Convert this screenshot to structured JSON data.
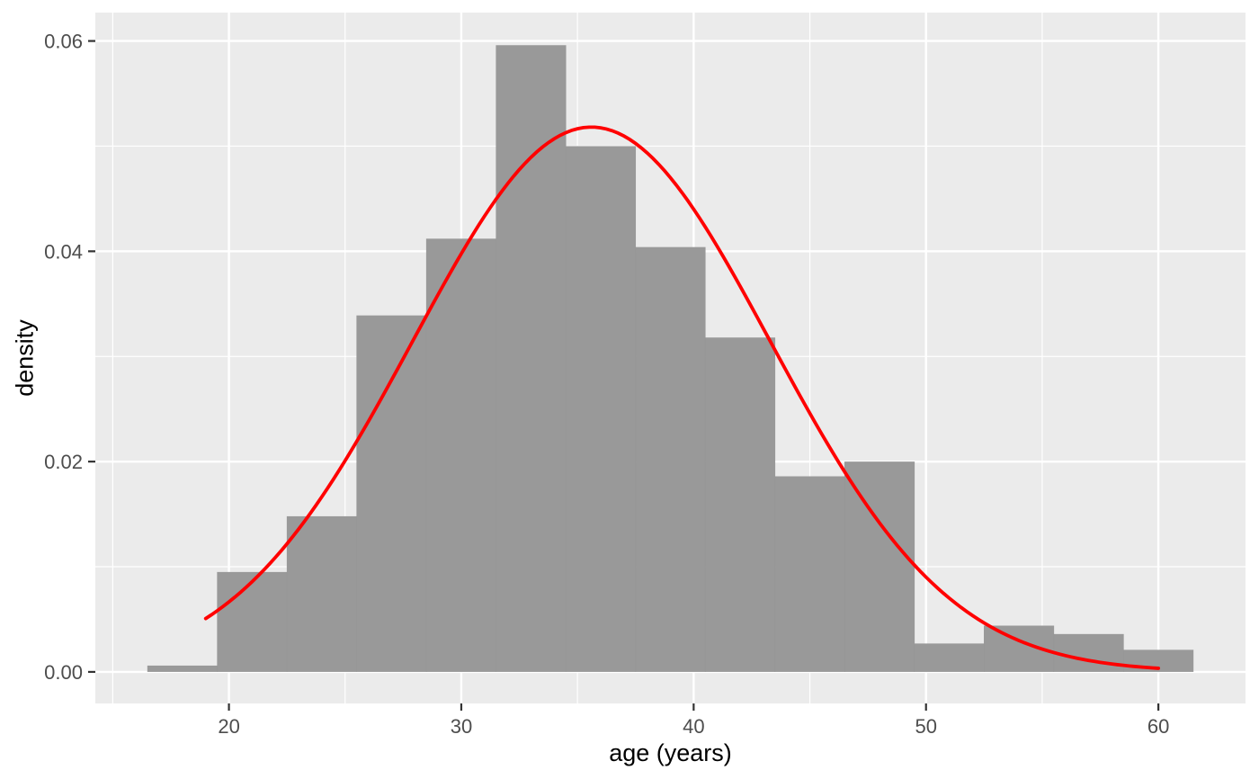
{
  "chart_data": {
    "type": "bar",
    "subtype": "histogram-with-density-curve",
    "title": "",
    "xlabel": "age (years)",
    "ylabel": "density",
    "x_axis": {
      "lim": [
        14.25,
        63.75
      ],
      "major_ticks": [
        20,
        30,
        40,
        50,
        60
      ],
      "major_tick_labels": [
        "20",
        "30",
        "40",
        "50",
        "60"
      ],
      "minor_gridlines": [
        15,
        25,
        35,
        45,
        55
      ]
    },
    "y_axis": {
      "lim": [
        -0.003,
        0.0627
      ],
      "major_ticks": [
        0,
        0.02,
        0.04,
        0.06
      ],
      "major_tick_labels": [
        "0.00",
        "0.02",
        "0.04",
        "0.06"
      ],
      "minor_gridlines": [
        0.01,
        0.03,
        0.05
      ]
    },
    "grid": true,
    "legend": "none",
    "bin_width_years": 3,
    "bins": [
      {
        "x0": 16.5,
        "x1": 19.5,
        "density": 0.0006
      },
      {
        "x0": 19.5,
        "x1": 22.5,
        "density": 0.0095
      },
      {
        "x0": 22.5,
        "x1": 25.5,
        "density": 0.0148
      },
      {
        "x0": 25.5,
        "x1": 28.5,
        "density": 0.0339
      },
      {
        "x0": 28.5,
        "x1": 31.5,
        "density": 0.0412
      },
      {
        "x0": 31.5,
        "x1": 34.5,
        "density": 0.0596
      },
      {
        "x0": 34.5,
        "x1": 37.5,
        "density": 0.05
      },
      {
        "x0": 37.5,
        "x1": 40.5,
        "density": 0.0404
      },
      {
        "x0": 40.5,
        "x1": 43.5,
        "density": 0.0318
      },
      {
        "x0": 43.5,
        "x1": 46.5,
        "density": 0.0186
      },
      {
        "x0": 46.5,
        "x1": 49.5,
        "density": 0.02
      },
      {
        "x0": 49.5,
        "x1": 52.5,
        "density": 0.0027
      },
      {
        "x0": 52.5,
        "x1": 55.5,
        "density": 0.0044
      },
      {
        "x0": 55.5,
        "x1": 58.5,
        "density": 0.0036
      },
      {
        "x0": 58.5,
        "x1": 61.5,
        "density": 0.0021
      }
    ],
    "curve": {
      "kind": "normal-density",
      "mean": 35.6,
      "sd": 7.7,
      "x_from": 19.0,
      "x_to": 60.0
    },
    "colors": {
      "bar_fill": "#969696",
      "panel_background": "#EBEBEB",
      "gridline": "#FFFFFF",
      "curve": "#FF0000",
      "tick_mark": "#333333",
      "tick_text": "#4D4D4D",
      "axis_title_text": "#000000",
      "outer_background": "#FFFFFF"
    }
  }
}
